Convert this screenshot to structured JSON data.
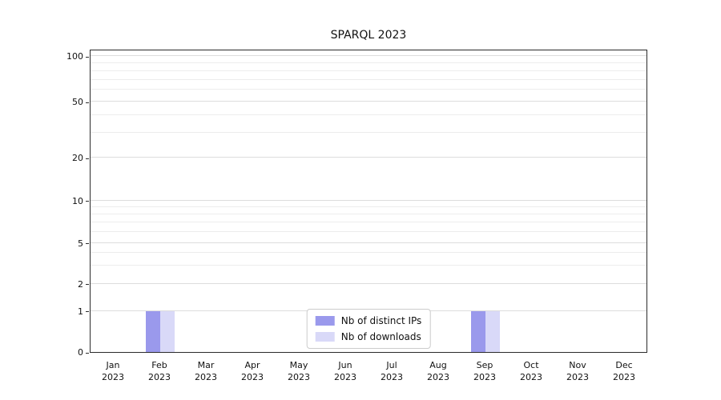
{
  "chart_data": {
    "type": "bar",
    "title": "SPARQL 2023",
    "categories": [
      {
        "line1": "Jan",
        "line2": "2023"
      },
      {
        "line1": "Feb",
        "line2": "2023"
      },
      {
        "line1": "Mar",
        "line2": "2023"
      },
      {
        "line1": "Apr",
        "line2": "2023"
      },
      {
        "line1": "May",
        "line2": "2023"
      },
      {
        "line1": "Jun",
        "line2": "2023"
      },
      {
        "line1": "Jul",
        "line2": "2023"
      },
      {
        "line1": "Aug",
        "line2": "2023"
      },
      {
        "line1": "Sep",
        "line2": "2023"
      },
      {
        "line1": "Oct",
        "line2": "2023"
      },
      {
        "line1": "Nov",
        "line2": "2023"
      },
      {
        "line1": "Dec",
        "line2": "2023"
      }
    ],
    "series": [
      {
        "name": "Nb of distinct IPs",
        "color": "#9a99ec",
        "values": [
          0,
          1,
          0,
          0,
          0,
          0,
          0,
          0,
          1,
          0,
          0,
          0
        ]
      },
      {
        "name": "Nb of downloads",
        "color": "#d9d9f8",
        "values": [
          0,
          1,
          0,
          0,
          0,
          0,
          0,
          0,
          1,
          0,
          0,
          0
        ]
      }
    ],
    "y_axis": {
      "scale": "symlog-like",
      "ticks": [
        {
          "value": 0,
          "label": "0",
          "pos": 0.0
        },
        {
          "value": 1,
          "label": "1",
          "pos": 0.135
        },
        {
          "value": 2,
          "label": "2",
          "pos": 0.225
        },
        {
          "value": 5,
          "label": "5",
          "pos": 0.36
        },
        {
          "value": 10,
          "label": "10",
          "pos": 0.5
        },
        {
          "value": 20,
          "label": "20",
          "pos": 0.64
        },
        {
          "value": 50,
          "label": "50",
          "pos": 0.825
        },
        {
          "value": 100,
          "label": "100",
          "pos": 0.975
        }
      ],
      "minor_ticks": [
        3,
        4,
        6,
        7,
        8,
        9,
        30,
        40,
        60,
        70,
        80,
        90
      ]
    },
    "legend_position": "bottom-center-inside",
    "grid": true
  }
}
